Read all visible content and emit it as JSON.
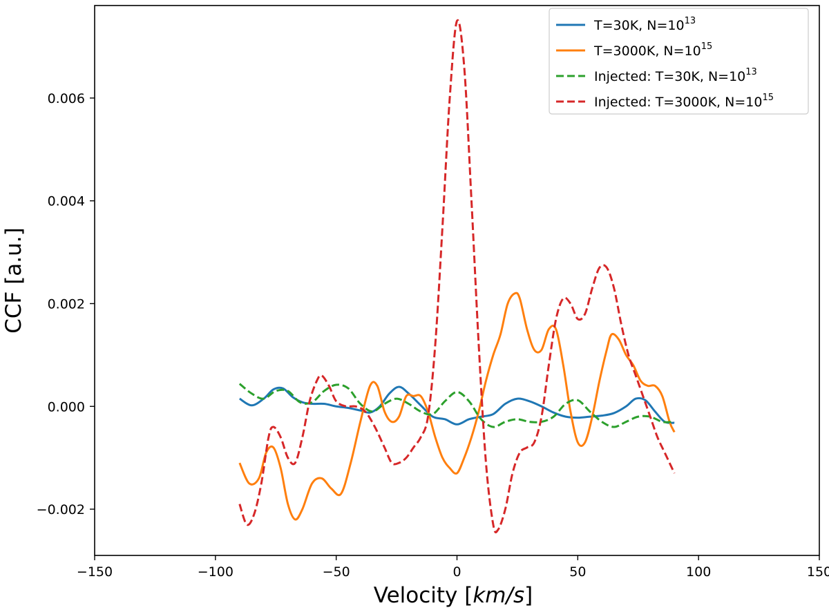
{
  "chart_data": {
    "type": "line",
    "xlabel_text": "Velocity [",
    "xlabel_unit": "km/s",
    "xlabel_close": "]",
    "ylabel": "CCF [a.u.]",
    "xlim": [
      -150,
      150
    ],
    "ylim": [
      -0.0029,
      0.0078
    ],
    "xticks": [
      -150,
      -100,
      -50,
      0,
      50,
      100,
      150
    ],
    "xtick_labels": [
      "−150",
      "−100",
      "−50",
      "0",
      "50",
      "100",
      "150"
    ],
    "yticks": [
      -0.002,
      0.0,
      0.002,
      0.004,
      0.006
    ],
    "ytick_labels": [
      "−0.002",
      "0.000",
      "0.002",
      "0.004",
      "0.006"
    ],
    "legend_position": "upper-right",
    "series": [
      {
        "name": "T=30K, N=10^13",
        "label_main": "T=30K, N=10",
        "label_sup": "13",
        "color": "#1f77b4",
        "style": "solid",
        "x": [
          -90,
          -85,
          -80,
          -76,
          -72,
          -68,
          -64,
          -60,
          -55,
          -50,
          -45,
          -40,
          -36,
          -32,
          -28,
          -24,
          -20,
          -15,
          -10,
          -5,
          0,
          5,
          10,
          15,
          20,
          25,
          30,
          35,
          40,
          45,
          50,
          55,
          60,
          65,
          70,
          74,
          78,
          82,
          86,
          90
        ],
        "y": [
          0.00015,
          2e-05,
          0.00015,
          0.00033,
          0.00035,
          0.00018,
          8e-05,
          5e-05,
          5e-05,
          0.0,
          -3e-05,
          -8e-05,
          -0.00012,
          0.0,
          0.00025,
          0.00038,
          0.00025,
          2e-05,
          -0.0002,
          -0.00025,
          -0.00035,
          -0.00025,
          -0.0002,
          -0.00015,
          5e-05,
          0.00015,
          0.0001,
          0.0,
          -0.00012,
          -0.0002,
          -0.00022,
          -0.0002,
          -0.00018,
          -0.00013,
          0.0,
          0.00015,
          0.00012,
          -0.0001,
          -0.0003,
          -0.00032
        ]
      },
      {
        "name": "T=3000K, N=10^15",
        "label_main": "T=3000K, N=10",
        "label_sup": "15",
        "color": "#ff7f0e",
        "style": "solid",
        "x": [
          -90,
          -86,
          -82,
          -79,
          -76,
          -73,
          -70,
          -67,
          -64,
          -60,
          -56,
          -52,
          -48,
          -44,
          -40,
          -36,
          -33,
          -30,
          -27,
          -24,
          -21,
          -18,
          -15,
          -12,
          -9,
          -6,
          -3,
          0,
          3,
          6,
          9,
          12,
          15,
          18,
          21,
          24,
          26,
          29,
          32,
          35,
          38,
          41,
          44,
          47,
          50,
          53,
          56,
          59,
          62,
          64,
          67,
          70,
          73,
          76,
          79,
          82,
          85,
          88,
          90
        ],
        "y": [
          -0.0011,
          -0.0015,
          -0.0014,
          -0.0009,
          -0.0008,
          -0.0012,
          -0.0019,
          -0.0022,
          -0.002,
          -0.0015,
          -0.0014,
          -0.0016,
          -0.0017,
          -0.0011,
          -0.0003,
          0.0004,
          0.0004,
          -0.0001,
          -0.0003,
          -0.0002,
          0.0002,
          0.0002,
          0.0002,
          -0.0001,
          -0.0006,
          -0.001,
          -0.0012,
          -0.0013,
          -0.001,
          -0.0006,
          -0.0001,
          0.0005,
          0.001,
          0.0014,
          0.002,
          0.0022,
          0.0021,
          0.0015,
          0.0011,
          0.0011,
          0.0015,
          0.0015,
          0.0008,
          -0.0001,
          -0.0007,
          -0.0007,
          -0.0002,
          0.0005,
          0.0011,
          0.0014,
          0.0013,
          0.001,
          0.0008,
          0.0005,
          0.0004,
          0.0004,
          0.0002,
          -0.0003,
          -0.0005
        ]
      },
      {
        "name": "Injected: T=30K, N=10^13",
        "label_main": "Injected: T=30K, N=10",
        "label_sup": "13",
        "color": "#2ca02c",
        "style": "dashed",
        "x": [
          -90,
          -85,
          -80,
          -75,
          -70,
          -65,
          -60,
          -55,
          -50,
          -45,
          -40,
          -35,
          -30,
          -25,
          -20,
          -15,
          -10,
          -5,
          0,
          5,
          10,
          15,
          20,
          25,
          30,
          35,
          40,
          45,
          50,
          55,
          60,
          65,
          70,
          75,
          80,
          85,
          90
        ],
        "y": [
          0.00044,
          0.00025,
          0.00015,
          0.0003,
          0.0003,
          8e-05,
          8e-05,
          0.0003,
          0.00042,
          0.00035,
          5e-05,
          -0.0001,
          5e-05,
          0.00015,
          5e-05,
          -0.0001,
          -0.00015,
          0.0001,
          0.00028,
          0.0001,
          -0.00025,
          -0.0004,
          -0.0003,
          -0.00025,
          -0.0003,
          -0.0003,
          -0.0002,
          5e-05,
          0.00012,
          -0.0001,
          -0.0003,
          -0.0004,
          -0.0003,
          -0.0002,
          -0.0002,
          -0.0003,
          -0.0003
        ]
      },
      {
        "name": "Injected: T=3000K, N=10^15",
        "label_main": "Injected: T=3000K, N=10",
        "label_sup": "15",
        "color": "#d62728",
        "style": "dashed",
        "x": [
          -90,
          -87,
          -84,
          -81,
          -78,
          -76,
          -73,
          -70,
          -67,
          -64,
          -61,
          -58,
          -56,
          -53,
          -50,
          -46,
          -42,
          -38,
          -34,
          -30,
          -27,
          -24,
          -21,
          -18,
          -15,
          -12,
          -9,
          -6,
          -3,
          0,
          3,
          6,
          9,
          12,
          15,
          17,
          20,
          23,
          26,
          29,
          32,
          35,
          38,
          41,
          44,
          47,
          50,
          53,
          56,
          59,
          62,
          65,
          68,
          71,
          74,
          77,
          80,
          83,
          86,
          90
        ],
        "y": [
          -0.0019,
          -0.0023,
          -0.0021,
          -0.0015,
          -0.0006,
          -0.0004,
          -0.0006,
          -0.001,
          -0.0011,
          -0.0006,
          0.0001,
          0.0005,
          0.0006,
          0.0004,
          0.0001,
          0.0,
          0.0,
          -0.0001,
          -0.0004,
          -0.0008,
          -0.0011,
          -0.0011,
          -0.001,
          -0.0008,
          -0.0006,
          -0.0002,
          0.0012,
          0.0035,
          0.006,
          0.0075,
          0.0066,
          0.004,
          0.0012,
          -0.0011,
          -0.0023,
          -0.0024,
          -0.002,
          -0.0013,
          -0.0009,
          -0.0008,
          -0.0007,
          -0.0002,
          0.0008,
          0.0017,
          0.0021,
          0.002,
          0.0017,
          0.0018,
          0.0023,
          0.0027,
          0.0027,
          0.0023,
          0.0016,
          0.001,
          0.0006,
          0.0002,
          -0.0002,
          -0.0006,
          -0.0009,
          -0.0013
        ]
      }
    ]
  }
}
